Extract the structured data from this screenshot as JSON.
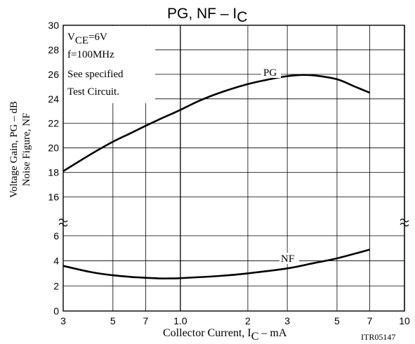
{
  "chart_data": {
    "type": "line",
    "title": "PG,  NF  –  I",
    "title_sub": "C",
    "xlabel_main": "Collector Current, I",
    "xlabel_sub": "C",
    "xlabel_unit": " –  mA",
    "ylabel_line1": "Voltage Gain, PG   –  dB",
    "ylabel_line2": "Noise Figure, NF",
    "x_scale": "log",
    "xlim": [
      0.3,
      10
    ],
    "x_ticks": [
      "3",
      "5",
      "7",
      "1.0",
      "2",
      "3",
      "5",
      "7",
      "10"
    ],
    "y_upper_ticks": [
      "16",
      "18",
      "20",
      "22",
      "24",
      "26",
      "28",
      "30"
    ],
    "y_lower_ticks": [
      "0",
      "2",
      "4",
      "6"
    ],
    "y_upper_range": [
      15,
      30
    ],
    "y_lower_range": [
      0,
      7
    ],
    "axis_break": true,
    "grid": true,
    "conditions": {
      "line1_main": "V",
      "line1_sub": "CE",
      "line1_rest": "=6V",
      "line2": "f=100MHz",
      "line3": "See specified",
      "line4": "Test Circuit."
    },
    "series": [
      {
        "name": "PG",
        "x": [
          0.3,
          0.4,
          0.5,
          0.6,
          0.7,
          0.8,
          1.0,
          1.2,
          1.5,
          2.0,
          2.5,
          3.0,
          3.5,
          4.0,
          5.0,
          6.0,
          7.0
        ],
        "y": [
          18.1,
          19.5,
          20.5,
          21.2,
          21.8,
          22.3,
          23.1,
          23.8,
          24.5,
          25.2,
          25.6,
          25.85,
          25.95,
          25.9,
          25.6,
          25.0,
          24.5
        ]
      },
      {
        "name": "NF",
        "x": [
          0.3,
          0.4,
          0.5,
          0.6,
          0.7,
          0.8,
          0.9,
          1.0,
          1.5,
          2.0,
          3.0,
          4.0,
          5.0,
          7.0
        ],
        "y": [
          3.6,
          3.1,
          2.85,
          2.72,
          2.65,
          2.6,
          2.6,
          2.62,
          2.8,
          3.0,
          3.4,
          3.85,
          4.2,
          4.9
        ]
      }
    ],
    "footnote": "ITR05147",
    "line_color": "#000000"
  }
}
